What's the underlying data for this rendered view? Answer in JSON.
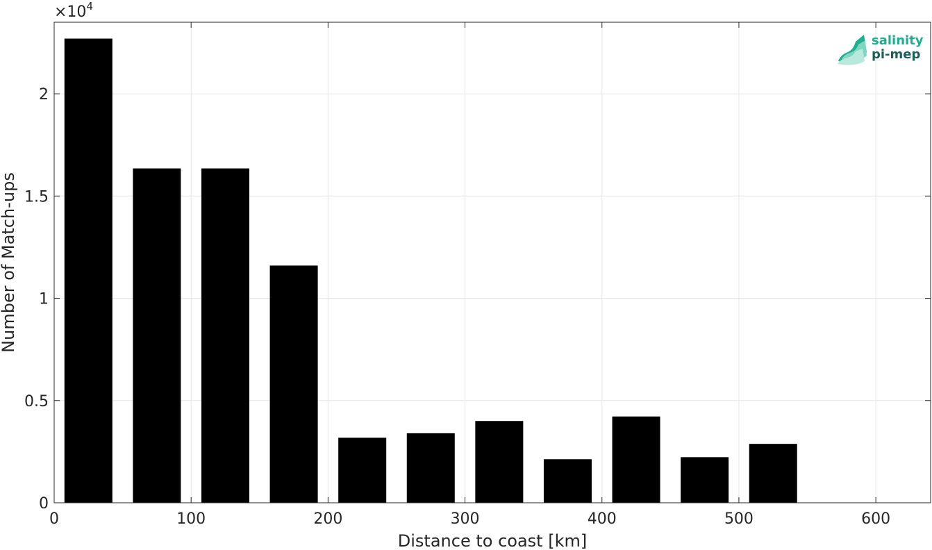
{
  "chart_data": {
    "type": "bar",
    "bin_centers": [
      25,
      75,
      125,
      175,
      225,
      275,
      325,
      375,
      425,
      475,
      525
    ],
    "values": [
      22700,
      16350,
      16350,
      11600,
      3180,
      3400,
      4000,
      2130,
      4220,
      2230,
      2880
    ],
    "xlabel": "Distance to coast [km]",
    "ylabel": "Number of Match-ups",
    "xlim": [
      0,
      640
    ],
    "ylim": [
      0,
      23500
    ],
    "xticks": [
      0,
      100,
      200,
      300,
      400,
      500,
      600
    ],
    "xtick_labels": [
      "0",
      "100",
      "200",
      "300",
      "400",
      "500",
      "600"
    ],
    "yticks": [
      0,
      5000,
      10000,
      15000,
      20000
    ],
    "ytick_labels": [
      "0",
      "0.5",
      "1",
      "1.5",
      "2"
    ],
    "y_exponent_label": "×10",
    "y_exponent_power": "4",
    "grid": true,
    "bar_color": "#000000"
  },
  "logo": {
    "line1": "salinity",
    "line2": "pi-mep",
    "color1": "#1fae8e",
    "color2": "#1a5f5a"
  }
}
